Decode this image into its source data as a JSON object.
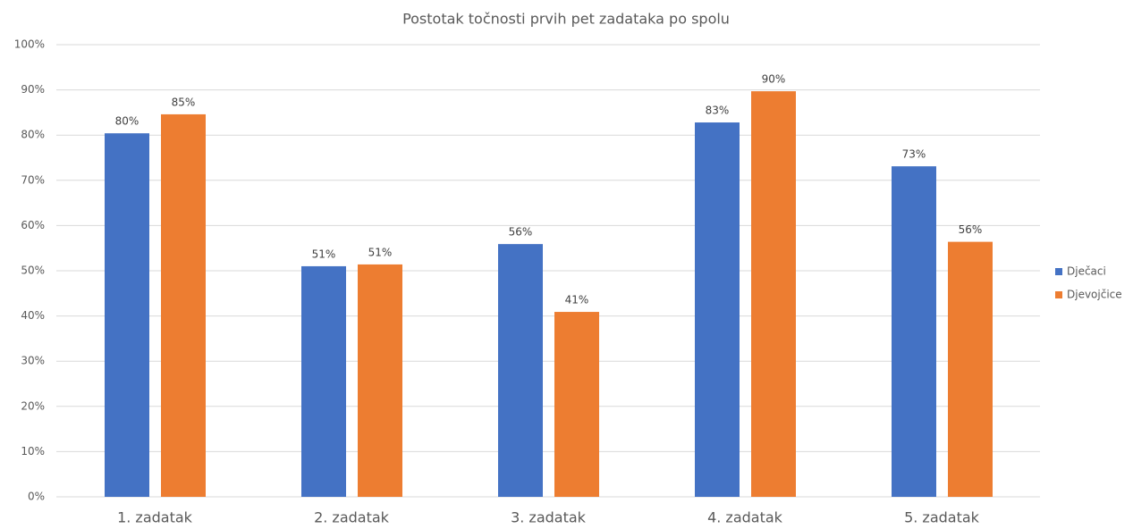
{
  "chart_data": {
    "type": "bar",
    "title": "Postotak točnosti prvih pet zadataka po spolu",
    "categories": [
      "1. zadatak",
      "2. zadatak",
      "3. zadatak",
      "4. zadatak",
      "5. zadatak"
    ],
    "series": [
      {
        "name": "Dječaci",
        "color": "#4472c4",
        "values": [
          80.4,
          51.0,
          55.9,
          82.8,
          73.1
        ],
        "value_labels": [
          "80%",
          "51%",
          "56%",
          "83%",
          "73%"
        ]
      },
      {
        "name": "Djevojčice",
        "color": "#ed7d31",
        "values": [
          84.6,
          51.4,
          40.9,
          89.7,
          56.4
        ],
        "value_labels": [
          "85%",
          "51%",
          "41%",
          "90%",
          "56%"
        ]
      }
    ],
    "ylim": [
      0,
      100
    ],
    "yticks": [
      {
        "value": 0,
        "label": "0%"
      },
      {
        "value": 10,
        "label": "10%"
      },
      {
        "value": 20,
        "label": "20%"
      },
      {
        "value": 30,
        "label": "30%"
      },
      {
        "value": 40,
        "label": "40%"
      },
      {
        "value": 50,
        "label": "50%"
      },
      {
        "value": 60,
        "label": "60%"
      },
      {
        "value": 70,
        "label": "70%"
      },
      {
        "value": 80,
        "label": "80%"
      },
      {
        "value": 90,
        "label": "90%"
      },
      {
        "value": 100,
        "label": "100%"
      }
    ],
    "grid": true,
    "legend": "right"
  }
}
